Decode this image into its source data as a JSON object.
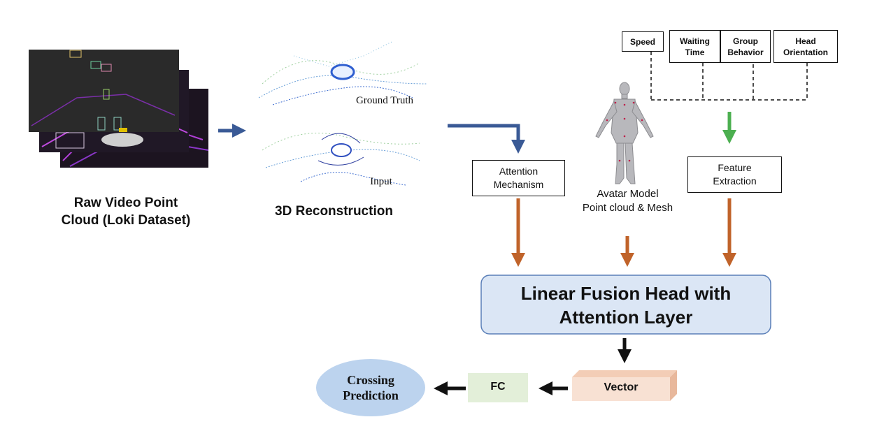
{
  "raw": {
    "line1": "Raw Video Point",
    "line2": "Cloud (Loki Dataset)"
  },
  "recon": {
    "title": "3D Reconstruction",
    "ground_truth": "Ground Truth",
    "input": "Input"
  },
  "attention": {
    "line1": "Attention",
    "line2": "Mechanism"
  },
  "avatar": {
    "line1": "Avatar Model",
    "line2": "Point cloud & Mesh"
  },
  "features": {
    "speed": "Speed",
    "waiting_1": "Waiting",
    "waiting_2": "Time",
    "group_1": "Group",
    "group_2": "Behavior",
    "head_1": "Head",
    "head_2": "Orientation"
  },
  "extraction": {
    "line1": "Feature",
    "line2": "Extraction"
  },
  "fusion": {
    "line1": "Linear Fusion Head with",
    "line2": "Attention Layer"
  },
  "vector": "Vector",
  "fc": "FC",
  "crossing": {
    "line1": "Crossing",
    "line2": "Prediction"
  },
  "colors": {
    "blue_arrow": "#3a5a96",
    "brown_arrow": "#c0632a",
    "green_arrow": "#4caf50",
    "fusion_fill": "#dbe6f5",
    "fusion_border": "#5a7fb8",
    "vector_fill": "#f8e1d3",
    "fc_fill": "#e3efd9",
    "crossing_fill": "#bcd3ee"
  }
}
